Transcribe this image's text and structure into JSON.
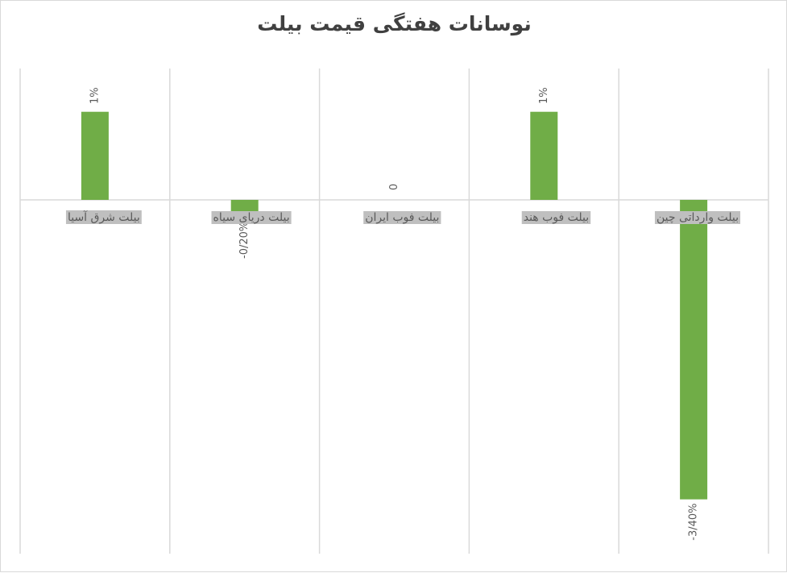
{
  "chart_data": {
    "type": "bar",
    "title": "نوسانات هفتگی قیمت بیلت",
    "categories": [
      "بیلت شرق آسیا",
      "بیلت دریای سیاه",
      "بیلت فوب ایران",
      "بیلت فوب هند",
      "بیلت وارداتی چین"
    ],
    "values": [
      1,
      -0.2,
      0,
      1,
      -3.4
    ],
    "data_labels": [
      "1%",
      "-0/20%",
      "0",
      "1%",
      "-3/40%"
    ],
    "xlabel": "",
    "ylabel": "",
    "ylim": [
      -4,
      1.5
    ],
    "grid": "vertical",
    "legend": "none",
    "bar_color": "#70ad47",
    "category_label_background": "#bfbfbf",
    "gridline_color": "#d9d9d9",
    "label_color": "#595959"
  }
}
